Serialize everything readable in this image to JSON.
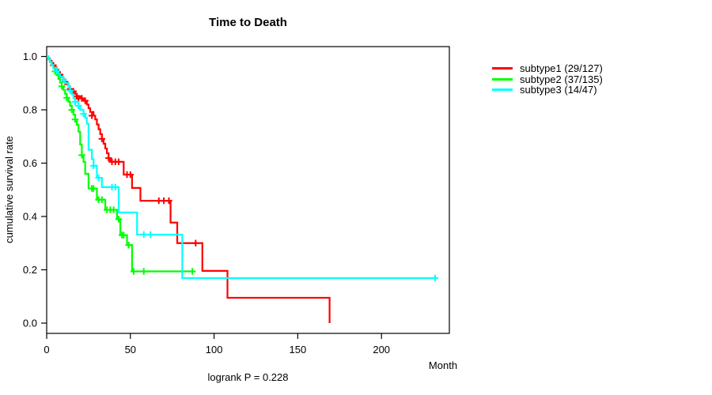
{
  "chart_data": {
    "type": "line",
    "variant": "kaplan-meier-step",
    "title": "Time to Death",
    "xlabel": "Month",
    "ylabel": "cumulative survival rate",
    "footnote": "logrank P = 0.228",
    "x_ticks": [
      0,
      50,
      100,
      150,
      200
    ],
    "y_ticks": [
      0.0,
      0.2,
      0.4,
      0.6,
      0.8,
      1.0
    ],
    "xlim": [
      0,
      240
    ],
    "ylim": [
      0,
      1.04
    ],
    "grid": false,
    "legend_position": "right-outside",
    "axis_color": "#000000",
    "background": "#ffffff",
    "series": [
      {
        "name": "subtype1",
        "label": "subtype1 (29/127)",
        "color": "#ff0000",
        "end_month": 169,
        "steps": [
          [
            0,
            1.0
          ],
          [
            1,
            0.992
          ],
          [
            2,
            0.984
          ],
          [
            3,
            0.976
          ],
          [
            4,
            0.967
          ],
          [
            5,
            0.959
          ],
          [
            6,
            0.95
          ],
          [
            7,
            0.941
          ],
          [
            8,
            0.932
          ],
          [
            9,
            0.923
          ],
          [
            10,
            0.914
          ],
          [
            11,
            0.905
          ],
          [
            12,
            0.896
          ],
          [
            13,
            0.887
          ],
          [
            14,
            0.878
          ],
          [
            15,
            0.869
          ],
          [
            17,
            0.86
          ],
          [
            18,
            0.851
          ],
          [
            20,
            0.843
          ],
          [
            22,
            0.834
          ],
          [
            24,
            0.82
          ],
          [
            25,
            0.806
          ],
          [
            26,
            0.792
          ],
          [
            28,
            0.778
          ],
          [
            29,
            0.764
          ],
          [
            30,
            0.745
          ],
          [
            31,
            0.727
          ],
          [
            32,
            0.709
          ],
          [
            33,
            0.691
          ],
          [
            34,
            0.673
          ],
          [
            35,
            0.655
          ],
          [
            36,
            0.637
          ],
          [
            37,
            0.619
          ],
          [
            38,
            0.605
          ],
          [
            46,
            0.557
          ],
          [
            51,
            0.507
          ],
          [
            56,
            0.459
          ],
          [
            74,
            0.377
          ],
          [
            78,
            0.3
          ],
          [
            93,
            0.196
          ],
          [
            108,
            0.095
          ],
          [
            169,
            0.0
          ]
        ],
        "censors": [
          [
            4,
            0.967
          ],
          [
            8,
            0.932
          ],
          [
            11,
            0.905
          ],
          [
            14,
            0.878
          ],
          [
            16,
            0.869
          ],
          [
            18,
            0.851
          ],
          [
            19,
            0.843
          ],
          [
            21,
            0.843
          ],
          [
            23,
            0.834
          ],
          [
            27,
            0.778
          ],
          [
            33,
            0.691
          ],
          [
            37,
            0.619
          ],
          [
            39,
            0.605
          ],
          [
            41,
            0.605
          ],
          [
            43,
            0.605
          ],
          [
            48,
            0.557
          ],
          [
            50,
            0.557
          ],
          [
            67,
            0.459
          ],
          [
            70,
            0.459
          ],
          [
            73,
            0.459
          ],
          [
            89,
            0.3
          ]
        ]
      },
      {
        "name": "subtype2",
        "label": "subtype2 (37/135)",
        "color": "#00ff00",
        "end_month": 87,
        "steps": [
          [
            0,
            1.0
          ],
          [
            1,
            0.989
          ],
          [
            2,
            0.978
          ],
          [
            3,
            0.967
          ],
          [
            4,
            0.956
          ],
          [
            5,
            0.944
          ],
          [
            6,
            0.93
          ],
          [
            7,
            0.916
          ],
          [
            8,
            0.902
          ],
          [
            9,
            0.888
          ],
          [
            10,
            0.874
          ],
          [
            11,
            0.86
          ],
          [
            12,
            0.845
          ],
          [
            13,
            0.83
          ],
          [
            14,
            0.815
          ],
          [
            15,
            0.8
          ],
          [
            16,
            0.782
          ],
          [
            17,
            0.764
          ],
          [
            18,
            0.744
          ],
          [
            19,
            0.718
          ],
          [
            20,
            0.67
          ],
          [
            21,
            0.63
          ],
          [
            22,
            0.605
          ],
          [
            23,
            0.56
          ],
          [
            25,
            0.505
          ],
          [
            30,
            0.463
          ],
          [
            35,
            0.425
          ],
          [
            42,
            0.39
          ],
          [
            44,
            0.33
          ],
          [
            48,
            0.293
          ],
          [
            51,
            0.194
          ]
        ],
        "censors": [
          [
            5,
            0.944
          ],
          [
            9,
            0.888
          ],
          [
            12,
            0.845
          ],
          [
            15,
            0.8
          ],
          [
            17,
            0.764
          ],
          [
            21,
            0.63
          ],
          [
            27,
            0.505
          ],
          [
            28,
            0.505
          ],
          [
            31,
            0.463
          ],
          [
            33,
            0.463
          ],
          [
            36,
            0.425
          ],
          [
            38,
            0.425
          ],
          [
            40,
            0.425
          ],
          [
            43,
            0.39
          ],
          [
            45,
            0.33
          ],
          [
            46,
            0.33
          ],
          [
            49,
            0.293
          ],
          [
            52,
            0.194
          ],
          [
            58,
            0.194
          ],
          [
            87,
            0.194
          ]
        ]
      },
      {
        "name": "subtype3",
        "label": "subtype3 (14/47)",
        "color": "#00ffff",
        "end_month": 232,
        "steps": [
          [
            0,
            1.0
          ],
          [
            1,
            0.99
          ],
          [
            2,
            0.979
          ],
          [
            3,
            0.968
          ],
          [
            4,
            0.957
          ],
          [
            6,
            0.946
          ],
          [
            7,
            0.935
          ],
          [
            8,
            0.924
          ],
          [
            10,
            0.913
          ],
          [
            11,
            0.9
          ],
          [
            13,
            0.886
          ],
          [
            14,
            0.872
          ],
          [
            15,
            0.858
          ],
          [
            16,
            0.844
          ],
          [
            17,
            0.83
          ],
          [
            19,
            0.815
          ],
          [
            20,
            0.8
          ],
          [
            22,
            0.785
          ],
          [
            23,
            0.77
          ],
          [
            24,
            0.748
          ],
          [
            25,
            0.65
          ],
          [
            27,
            0.615
          ],
          [
            28,
            0.59
          ],
          [
            30,
            0.545
          ],
          [
            33,
            0.51
          ],
          [
            43,
            0.415
          ],
          [
            54,
            0.332
          ],
          [
            81,
            0.169
          ]
        ],
        "censors": [
          [
            6,
            0.946
          ],
          [
            10,
            0.913
          ],
          [
            14,
            0.872
          ],
          [
            17,
            0.83
          ],
          [
            19,
            0.815
          ],
          [
            22,
            0.785
          ],
          [
            28,
            0.59
          ],
          [
            31,
            0.545
          ],
          [
            39,
            0.51
          ],
          [
            41,
            0.51
          ],
          [
            58,
            0.332
          ],
          [
            62,
            0.332
          ],
          [
            232,
            0.169
          ]
        ]
      }
    ]
  }
}
